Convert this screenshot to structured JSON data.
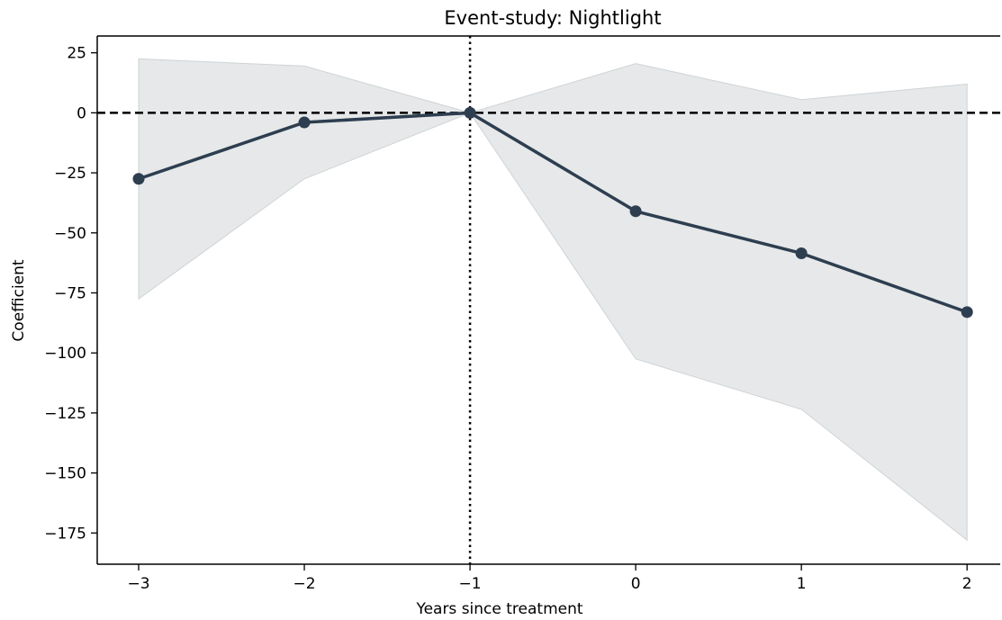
{
  "chart_data": {
    "type": "line",
    "title": "Event-study: Nightlight",
    "xlabel": "Years since treatment",
    "ylabel": "Coefficient",
    "x": [
      -3,
      -2,
      -1,
      0,
      1,
      2
    ],
    "series": [
      {
        "values": [
          -27.5,
          -4.0,
          0.0,
          -41.0,
          -58.5,
          -83.0
        ],
        "ci_upper": [
          22.5,
          19.5,
          0.0,
          20.5,
          5.5,
          12.0
        ],
        "ci_lower": [
          -77.5,
          -27.5,
          0.0,
          -102.5,
          -123.5,
          -178.0
        ]
      }
    ],
    "xticks": [
      -3,
      -2,
      -1,
      0,
      1,
      2
    ],
    "xtick_labels": [
      "−3",
      "−2",
      "−1",
      "0",
      "1",
      "2"
    ],
    "yticks": [
      25,
      0,
      -25,
      -50,
      -75,
      -100,
      -125,
      -150,
      -175
    ],
    "ytick_labels": [
      "25",
      "0",
      "−25",
      "−50",
      "−75",
      "−100",
      "−125",
      "−150",
      "−175"
    ],
    "xlim": [
      -3.25,
      2.2
    ],
    "ylim": [
      -188,
      32
    ],
    "reference_lines": {
      "horizontal_y": 0,
      "vertical_x": -1
    },
    "grid": false,
    "legend": "none",
    "colors": {
      "line": "#2d3e50",
      "band": "#d8dcdd",
      "reference": "#000000"
    }
  }
}
